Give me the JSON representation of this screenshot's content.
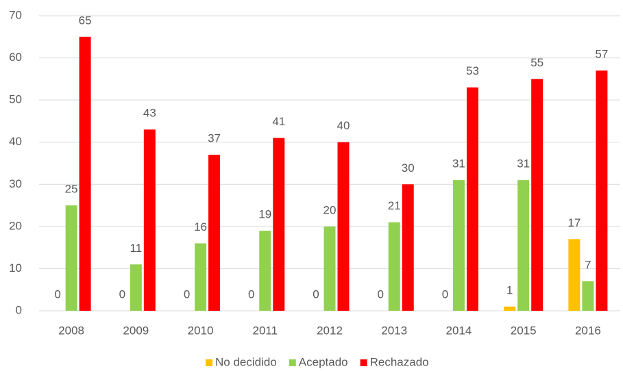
{
  "chart_data": {
    "type": "bar",
    "categories": [
      "2008",
      "2009",
      "2010",
      "2011",
      "2012",
      "2013",
      "2014",
      "2015",
      "2016"
    ],
    "series": [
      {
        "name": "No decidido",
        "color": "#ffc000",
        "values": [
          0,
          0,
          0,
          0,
          0,
          0,
          0,
          1,
          17
        ]
      },
      {
        "name": "Aceptado",
        "color": "#92d050",
        "values": [
          25,
          11,
          16,
          19,
          20,
          21,
          31,
          31,
          7
        ]
      },
      {
        "name": "Rechazado",
        "color": "#ff0000",
        "values": [
          65,
          43,
          37,
          41,
          40,
          30,
          53,
          55,
          57
        ]
      }
    ],
    "ylim": [
      0,
      70
    ],
    "yticks": [
      0,
      10,
      20,
      30,
      40,
      50,
      60,
      70
    ],
    "grid": true,
    "legend": "bottom"
  }
}
